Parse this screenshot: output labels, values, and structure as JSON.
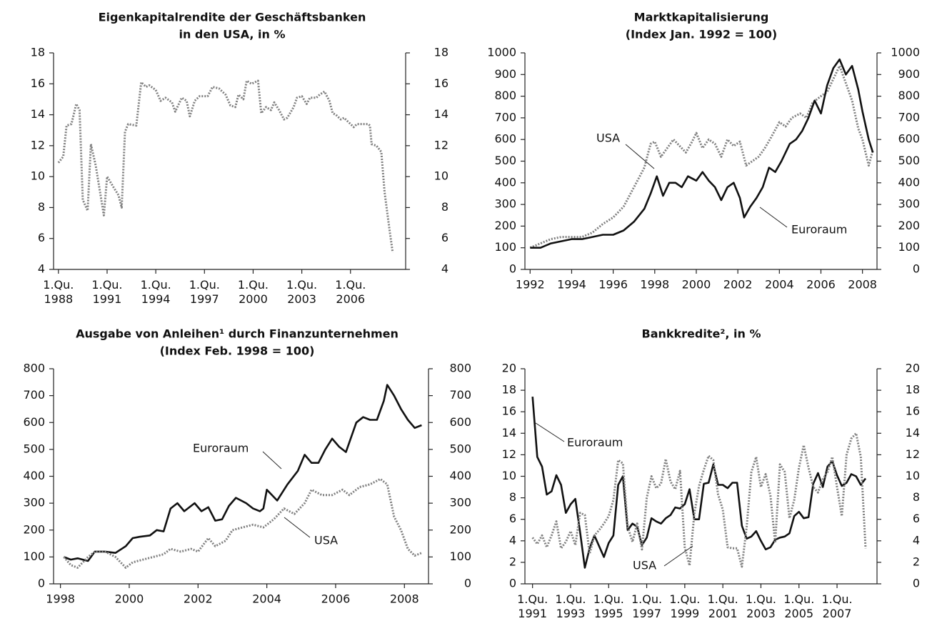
{
  "chart_data": [
    {
      "type": "line",
      "title": [
        "Eigenkapitalrendite der Geschäftsbanken",
        "in den USA, in %"
      ],
      "x": [
        1988.0,
        1988.3,
        1988.5,
        1988.8,
        1989.1,
        1989.3,
        1989.5,
        1989.8,
        1990.0,
        1990.3,
        1990.8,
        1991.0,
        1991.4,
        1991.7,
        1991.9,
        1992.1,
        1992.3,
        1992.8,
        1993.1,
        1993.4,
        1993.6,
        1994.0,
        1994.3,
        1994.6,
        1995.0,
        1995.2,
        1995.6,
        1995.9,
        1996.1,
        1996.4,
        1996.7,
        1997.2,
        1997.5,
        1997.9,
        1998.3,
        1998.6,
        1998.9,
        1999.1,
        1999.4,
        1999.6,
        1999.9,
        2000.3,
        2000.5,
        2000.8,
        2001.1,
        2001.3,
        2001.6,
        2001.9,
        2002.1,
        2002.5,
        2002.7,
        2003.0,
        2003.3,
        2003.5,
        2003.9,
        2004.1,
        2004.4,
        2004.7,
        2004.9,
        2005.1,
        2005.4,
        2005.6,
        2005.9,
        2006.2,
        2006.4,
        2006.8,
        2007.1,
        2007.2,
        2007.3,
        2007.6,
        2007.9,
        2008.1,
        2008.4,
        2008.6
      ],
      "series": [
        {
          "name": "USA",
          "color": "#808080",
          "style": "dotted",
          "values": [
            10.9,
            11.3,
            13.3,
            13.4,
            14.7,
            14.3,
            8.5,
            7.8,
            12.1,
            10.7,
            7.5,
            10.0,
            9.3,
            8.8,
            8.0,
            12.9,
            13.4,
            13.3,
            16.1,
            15.8,
            15.9,
            15.6,
            14.9,
            15.1,
            14.8,
            14.2,
            15.1,
            14.9,
            13.9,
            14.9,
            15.2,
            15.2,
            15.8,
            15.7,
            15.3,
            14.6,
            14.5,
            15.3,
            15.0,
            16.2,
            16.0,
            16.2,
            14.1,
            14.5,
            14.3,
            14.8,
            14.3,
            13.7,
            13.8,
            14.5,
            15.1,
            15.2,
            14.7,
            15.1,
            15.1,
            15.3,
            15.5,
            14.9,
            14.1,
            14.0,
            13.7,
            13.8,
            13.5,
            13.2,
            13.4,
            13.4,
            13.4,
            13.3,
            12.1,
            12.0,
            11.6,
            9.0,
            6.6,
            5.1
          ]
        }
      ],
      "xlim": [
        1987.7,
        2009.4
      ],
      "xticks": [
        {
          "value": 1988,
          "label": "1.Qu. 1988"
        },
        {
          "value": 1991,
          "label": "1.Qu. 1991"
        },
        {
          "value": 1994,
          "label": "1.Qu. 1994"
        },
        {
          "value": 1997,
          "label": "1.Qu. 1997"
        },
        {
          "value": 2000,
          "label": "1.Qu. 2000"
        },
        {
          "value": 2003,
          "label": "1.Qu. 2003"
        },
        {
          "value": 2006,
          "label": "1.Qu. 2006"
        }
      ],
      "ylim": [
        4,
        18
      ],
      "yticks": [
        4,
        6,
        8,
        10,
        12,
        14,
        16,
        18
      ],
      "right_axis": true
    },
    {
      "type": "line",
      "title": [
        "Marktkapitalisierung",
        "(Index Jan. 1992 = 100)"
      ],
      "series": [
        {
          "name": "USA",
          "color": "#808080",
          "style": "dotted",
          "x": [
            1992,
            1992.5,
            1993,
            1993.5,
            1994,
            1994.5,
            1995,
            1995.5,
            1996,
            1996.5,
            1997,
            1997.5,
            1997.8,
            1998,
            1998.3,
            1998.6,
            1998.9,
            1999.2,
            1999.5,
            1999.8,
            2000,
            2000.3,
            2000.6,
            2000.9,
            2001.2,
            2001.5,
            2001.8,
            2002.1,
            2002.4,
            2002.7,
            2003,
            2003.3,
            2003.6,
            2004,
            2004.3,
            2004.6,
            2005,
            2005.3,
            2005.6,
            2006,
            2006.3,
            2006.6,
            2006.9,
            2007.2,
            2007.5,
            2007.8,
            2008,
            2008.3,
            2008.5
          ],
          "values": [
            100,
            120,
            140,
            150,
            150,
            150,
            170,
            210,
            240,
            290,
            380,
            470,
            580,
            590,
            520,
            560,
            600,
            570,
            540,
            590,
            630,
            560,
            600,
            580,
            520,
            600,
            570,
            590,
            480,
            500,
            520,
            560,
            610,
            680,
            660,
            700,
            720,
            700,
            770,
            800,
            820,
            880,
            940,
            860,
            780,
            650,
            600,
            480,
            550
          ]
        },
        {
          "name": "Euroraum",
          "color": "#111111",
          "style": "solid",
          "x": [
            1992,
            1992.5,
            1993,
            1993.5,
            1994,
            1994.5,
            1995,
            1995.5,
            1996,
            1996.5,
            1997,
            1997.5,
            1997.8,
            1998.1,
            1998.4,
            1998.7,
            1999,
            1999.3,
            1999.6,
            2000,
            2000.3,
            2000.6,
            2000.9,
            2001.2,
            2001.5,
            2001.8,
            2002.1,
            2002.3,
            2002.6,
            2002.9,
            2003.2,
            2003.5,
            2003.8,
            2004.1,
            2004.5,
            2004.8,
            2005.1,
            2005.4,
            2005.7,
            2006,
            2006.3,
            2006.6,
            2006.9,
            2007.2,
            2007.5,
            2007.8,
            2008,
            2008.3,
            2008.5
          ],
          "values": [
            100,
            100,
            120,
            130,
            140,
            140,
            150,
            160,
            160,
            180,
            220,
            280,
            350,
            430,
            340,
            400,
            400,
            380,
            430,
            410,
            450,
            410,
            380,
            320,
            380,
            400,
            330,
            240,
            290,
            330,
            380,
            470,
            450,
            500,
            580,
            600,
            640,
            700,
            780,
            720,
            850,
            930,
            970,
            900,
            940,
            830,
            730,
            600,
            540
          ]
        }
      ],
      "annotations": [
        "USA",
        "Euroraum"
      ],
      "xlim": [
        1991.75,
        2008.7
      ],
      "xticks": [
        1992,
        1994,
        1996,
        1998,
        2000,
        2002,
        2004,
        2006,
        2008
      ],
      "ylim": [
        0,
        1000
      ],
      "yticks": [
        0,
        100,
        200,
        300,
        400,
        500,
        600,
        700,
        800,
        900,
        1000
      ],
      "right_axis": true
    },
    {
      "type": "line",
      "title": [
        "Ausgabe von Anleihen¹ durch Finanzunternehmen",
        "(Index Feb. 1998 = 100)"
      ],
      "series": [
        {
          "name": "Euroraum",
          "color": "#111111",
          "style": "solid",
          "x": [
            1998.1,
            1998.3,
            1998.5,
            1998.8,
            1999,
            1999.3,
            1999.6,
            1999.9,
            2000.1,
            2000.3,
            2000.6,
            2000.8,
            2001,
            2001.2,
            2001.4,
            2001.6,
            2001.9,
            2002.1,
            2002.3,
            2002.5,
            2002.7,
            2002.9,
            2003.1,
            2003.4,
            2003.6,
            2003.8,
            2003.9,
            2004,
            2004.3,
            2004.6,
            2004.9,
            2005.1,
            2005.3,
            2005.5,
            2005.7,
            2005.9,
            2006.1,
            2006.3,
            2006.6,
            2006.8,
            2007,
            2007.2,
            2007.4,
            2007.5,
            2007.7,
            2007.9,
            2008.1,
            2008.3,
            2008.5
          ],
          "values": [
            100,
            90,
            95,
            85,
            120,
            120,
            115,
            140,
            170,
            175,
            180,
            200,
            195,
            280,
            300,
            270,
            300,
            270,
            285,
            235,
            240,
            290,
            320,
            300,
            280,
            270,
            280,
            350,
            310,
            370,
            420,
            480,
            450,
            450,
            500,
            540,
            510,
            490,
            600,
            620,
            610,
            610,
            680,
            740,
            700,
            650,
            610,
            580,
            590
          ]
        },
        {
          "name": "USA",
          "color": "#808080",
          "style": "dotted",
          "x": [
            1998.1,
            1998.3,
            1998.5,
            1998.8,
            1999,
            1999.3,
            1999.6,
            1999.9,
            2000.1,
            2000.4,
            2000.7,
            2001,
            2001.2,
            2001.5,
            2001.8,
            2002,
            2002.3,
            2002.5,
            2002.8,
            2003,
            2003.3,
            2003.6,
            2003.9,
            2004.2,
            2004.5,
            2004.8,
            2005.1,
            2005.3,
            2005.6,
            2005.9,
            2006.2,
            2006.4,
            2006.7,
            2007,
            2007.3,
            2007.5,
            2007.7,
            2007.9,
            2008.1,
            2008.3,
            2008.5
          ],
          "values": [
            100,
            70,
            60,
            100,
            120,
            120,
            100,
            60,
            80,
            90,
            100,
            110,
            130,
            120,
            130,
            120,
            170,
            140,
            160,
            200,
            210,
            220,
            210,
            240,
            280,
            260,
            300,
            350,
            330,
            330,
            350,
            330,
            360,
            370,
            390,
            370,
            250,
            200,
            130,
            105,
            115
          ]
        }
      ],
      "annotations": [
        "Euroraum",
        "USA"
      ],
      "xlim": [
        1997.8,
        2008.7
      ],
      "xticks": [
        1998,
        2000,
        2002,
        2004,
        2006,
        2008
      ],
      "ylim": [
        0,
        800
      ],
      "yticks": [
        0,
        100,
        200,
        300,
        400,
        500,
        600,
        700,
        800
      ],
      "right_axis": true
    },
    {
      "type": "line",
      "title": [
        "Bankkredite², in %"
      ],
      "x": [
        1991,
        1991.25,
        1991.5,
        1991.75,
        1992,
        1992.25,
        1992.5,
        1992.75,
        1993,
        1993.25,
        1993.5,
        1993.75,
        1994,
        1994.25,
        1994.5,
        1994.75,
        1995,
        1995.25,
        1995.5,
        1995.75,
        1996,
        1996.25,
        1996.5,
        1996.75,
        1997,
        1997.25,
        1997.5,
        1997.75,
        1998,
        1998.25,
        1998.5,
        1998.75,
        1999,
        1999.25,
        1999.5,
        1999.75,
        2000,
        2000.25,
        2000.5,
        2000.75,
        2001,
        2001.25,
        2001.5,
        2001.75,
        2002,
        2002.25,
        2002.5,
        2002.75,
        2003,
        2003.25,
        2003.5,
        2003.75,
        2004,
        2004.25,
        2004.5,
        2004.75,
        2005,
        2005.25,
        2005.5,
        2005.75,
        2006,
        2006.25,
        2006.5,
        2006.75,
        2007,
        2007.25,
        2007.5,
        2007.75,
        2008,
        2008.25,
        2008.5
      ],
      "series": [
        {
          "name": "Euroraum",
          "color": "#111111",
          "style": "solid",
          "values": [
            17.4,
            11.8,
            10.9,
            8.3,
            8.6,
            10.1,
            9.2,
            6.6,
            7.4,
            7.9,
            4.8,
            1.5,
            3.3,
            4.5,
            3.5,
            2.5,
            3.8,
            4.5,
            9.2,
            10.0,
            5.0,
            5.6,
            5.3,
            3.6,
            4.3,
            6.1,
            5.8,
            5.6,
            6.1,
            6.4,
            7.1,
            7.0,
            7.4,
            8.8,
            6.0,
            6.0,
            9.3,
            9.4,
            11.1,
            9.2,
            9.2,
            8.9,
            9.4,
            9.4,
            5.4,
            4.2,
            4.4,
            4.9,
            4.0,
            3.2,
            3.4,
            4.1,
            4.3,
            4.4,
            4.7,
            6.3,
            6.7,
            6.1,
            6.2,
            9.3,
            10.3,
            9.0,
            10.9,
            11.4,
            10.1,
            9.1,
            9.4,
            10.2,
            10.0,
            9.2,
            9.8
          ]
        },
        {
          "name": "USA",
          "color": "#808080",
          "style": "dotted",
          "values": [
            4.3,
            3.7,
            4.5,
            3.4,
            4.5,
            5.8,
            3.3,
            3.9,
            4.9,
            3.6,
            6.6,
            6.4,
            2.8,
            4.5,
            5.0,
            5.6,
            6.3,
            7.8,
            11.5,
            11.2,
            5.3,
            3.9,
            5.6,
            3.2,
            8.0,
            10.0,
            8.9,
            9.3,
            11.6,
            9.5,
            8.8,
            10.5,
            3.4,
            1.7,
            6.5,
            9.1,
            10.6,
            11.9,
            11.5,
            8.3,
            6.9,
            3.4,
            3.3,
            3.3,
            1.6,
            5.3,
            10.4,
            11.8,
            9.0,
            10.2,
            8.2,
            3.8,
            11.1,
            10.4,
            6.1,
            7.8,
            10.8,
            12.9,
            10.8,
            9.0,
            8.5,
            9.7,
            10.4,
            11.8,
            9.0,
            6.3,
            12.0,
            13.5,
            14.0,
            11.8,
            3.3
          ]
        }
      ],
      "annotations": [
        "Euroraum",
        "USA"
      ],
      "xlim": [
        1990.6,
        2009.1
      ],
      "xticks": [
        {
          "value": 1991,
          "label": "1.Qu. 1991"
        },
        {
          "value": 1993,
          "label": "1.Qu. 1993"
        },
        {
          "value": 1995,
          "label": "1.Qu. 1995"
        },
        {
          "value": 1997,
          "label": "1.Qu. 1997"
        },
        {
          "value": 1999,
          "label": "1.Qu. 1999"
        },
        {
          "value": 2001,
          "label": "1.Qu. 2001"
        },
        {
          "value": 2003,
          "label": "1.Qu. 2003"
        },
        {
          "value": 2005,
          "label": "1.Qu. 2005"
        },
        {
          "value": 2007,
          "label": "1.Qu. 2007"
        }
      ],
      "ylim": [
        0,
        20
      ],
      "yticks": [
        0,
        2,
        4,
        6,
        8,
        10,
        12,
        14,
        16,
        18,
        20
      ],
      "right_axis": true
    }
  ]
}
